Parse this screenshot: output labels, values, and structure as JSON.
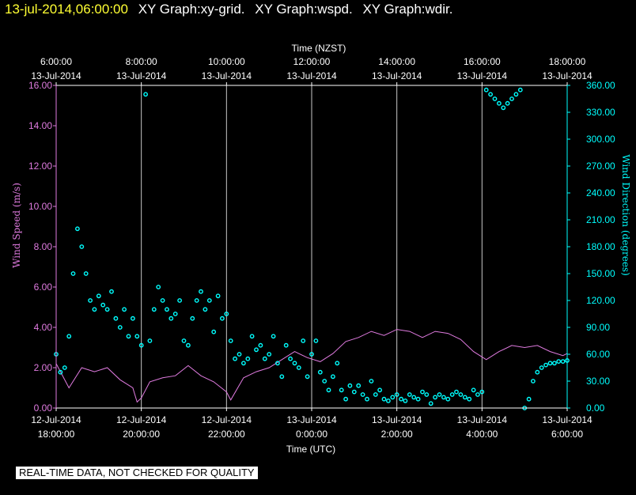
{
  "header": {
    "timestamp": "13-jul-2014,06:00:00",
    "titles": [
      "XY Graph:xy-grid.",
      "XY Graph:wspd.",
      "XY Graph:wdir."
    ]
  },
  "quality_note": "REAL-TIME DATA, NOT CHECKED FOR QUALITY",
  "chart_data": {
    "type": "line",
    "top_axis_label": "Time (NZST)",
    "bottom_axis_label": "Time (UTC)",
    "top_ticks": [
      {
        "time": "6:00:00",
        "date": "13-Jul-2014"
      },
      {
        "time": "8:00:00",
        "date": "13-Jul-2014"
      },
      {
        "time": "10:00:00",
        "date": "13-Jul-2014"
      },
      {
        "time": "12:00:00",
        "date": "13-Jul-2014"
      },
      {
        "time": "14:00:00",
        "date": "13-Jul-2014"
      },
      {
        "time": "16:00:00",
        "date": "13-Jul-2014"
      },
      {
        "time": "18:00:00",
        "date": "13-Jul-2014"
      }
    ],
    "bottom_ticks": [
      {
        "date": "12-Jul-2014",
        "time": "18:00:00"
      },
      {
        "date": "12-Jul-2014",
        "time": "20:00:00"
      },
      {
        "date": "12-Jul-2014",
        "time": "22:00:00"
      },
      {
        "date": "13-Jul-2014",
        "time": "0:00:00"
      },
      {
        "date": "13-Jul-2014",
        "time": "2:00:00"
      },
      {
        "date": "13-Jul-2014",
        "time": "4:00:00"
      },
      {
        "date": "13-Jul-2014",
        "time": "6:00:00"
      }
    ],
    "xlim_hours_utc": [
      18,
      30
    ],
    "left_axis": {
      "label": "Wind Speed (m/s)",
      "ylim": [
        0,
        16
      ],
      "ticks": [
        "0.00",
        "2.00",
        "4.00",
        "6.00",
        "8.00",
        "10.00",
        "12.00",
        "14.00",
        "16.00"
      ],
      "color": "#e07be0"
    },
    "right_axis": {
      "label": "Wind Direction (degrees)",
      "ylim": [
        0,
        360
      ],
      "ticks": [
        "0.00",
        "30.00",
        "60.00",
        "90.00",
        "120.00",
        "150.00",
        "180.00",
        "210.00",
        "240.00",
        "270.00",
        "300.00",
        "330.00",
        "360.00"
      ],
      "color": "#00ffff"
    },
    "grid": "vertical",
    "series": [
      {
        "axis": "left",
        "style": "line",
        "color": "#e07be0",
        "x": [
          18.0,
          18.3,
          18.6,
          18.9,
          19.2,
          19.5,
          19.8,
          19.9,
          20.0,
          20.2,
          20.5,
          20.8,
          21.1,
          21.4,
          21.7,
          22.0,
          22.1,
          22.4,
          22.7,
          23.0,
          23.3,
          23.6,
          23.9,
          24.2,
          24.5,
          24.8,
          25.1,
          25.4,
          25.7,
          26.0,
          26.3,
          26.6,
          26.9,
          27.2,
          27.5,
          27.8,
          28.1,
          28.4,
          28.7,
          29.0,
          29.3,
          29.6,
          29.9,
          30.0
        ],
        "y": [
          2.2,
          1.0,
          2.0,
          1.8,
          2.0,
          1.4,
          1.0,
          0.3,
          0.5,
          1.3,
          1.5,
          1.6,
          2.1,
          1.6,
          1.3,
          0.8,
          0.4,
          1.5,
          1.8,
          2.0,
          2.4,
          2.8,
          2.5,
          2.3,
          2.7,
          3.3,
          3.5,
          3.8,
          3.6,
          3.9,
          3.8,
          3.5,
          3.8,
          3.7,
          3.4,
          2.8,
          2.4,
          2.8,
          3.1,
          3.0,
          3.1,
          2.8,
          2.6,
          2.7
        ]
      },
      {
        "axis": "right",
        "style": "scatter",
        "color": "#00ffff",
        "x": [
          18.0,
          18.1,
          18.2,
          18.3,
          18.4,
          18.5,
          18.6,
          18.7,
          18.8,
          18.9,
          19.0,
          19.1,
          19.2,
          19.3,
          19.4,
          19.5,
          19.6,
          19.7,
          19.8,
          19.9,
          20.0,
          20.1,
          20.2,
          20.3,
          20.4,
          20.5,
          20.6,
          20.7,
          20.8,
          20.9,
          21.0,
          21.1,
          21.2,
          21.3,
          21.4,
          21.5,
          21.6,
          21.7,
          21.8,
          21.9,
          22.0,
          22.1,
          22.2,
          22.3,
          22.4,
          22.5,
          22.6,
          22.7,
          22.8,
          22.9,
          23.0,
          23.1,
          23.2,
          23.3,
          23.4,
          23.5,
          23.6,
          23.7,
          23.8,
          23.9,
          24.0,
          24.1,
          24.2,
          24.3,
          24.4,
          24.5,
          24.6,
          24.7,
          24.8,
          24.9,
          25.0,
          25.1,
          25.2,
          25.3,
          25.4,
          25.5,
          25.6,
          25.7,
          25.8,
          25.9,
          26.0,
          26.1,
          26.2,
          26.3,
          26.4,
          26.5,
          26.6,
          26.7,
          26.8,
          26.9,
          27.0,
          27.1,
          27.2,
          27.3,
          27.4,
          27.5,
          27.6,
          27.7,
          27.8,
          27.9,
          28.0,
          28.1,
          28.2,
          28.3,
          28.4,
          28.5,
          28.6,
          28.7,
          28.8,
          28.9,
          29.0,
          29.1,
          29.2,
          29.3,
          29.4,
          29.5,
          29.6,
          29.7,
          29.8,
          29.9,
          30.0
        ],
        "y": [
          60,
          40,
          45,
          80,
          150,
          200,
          180,
          150,
          120,
          110,
          125,
          115,
          110,
          130,
          100,
          90,
          110,
          80,
          100,
          80,
          70,
          350,
          75,
          110,
          135,
          120,
          110,
          100,
          105,
          120,
          75,
          70,
          100,
          120,
          130,
          110,
          120,
          85,
          125,
          100,
          105,
          75,
          55,
          60,
          50,
          55,
          80,
          65,
          70,
          55,
          60,
          80,
          50,
          35,
          70,
          55,
          50,
          45,
          75,
          35,
          60,
          75,
          40,
          30,
          20,
          35,
          50,
          20,
          10,
          25,
          18,
          25,
          15,
          10,
          30,
          15,
          20,
          10,
          8,
          12,
          15,
          10,
          8,
          15,
          12,
          10,
          18,
          15,
          5,
          12,
          15,
          12,
          10,
          15,
          18,
          15,
          12,
          10,
          20,
          15,
          18,
          355,
          350,
          345,
          340,
          335,
          340,
          345,
          350,
          355,
          0,
          10,
          30,
          40,
          45,
          48,
          50,
          50,
          52,
          52,
          53
        ]
      }
    ]
  }
}
